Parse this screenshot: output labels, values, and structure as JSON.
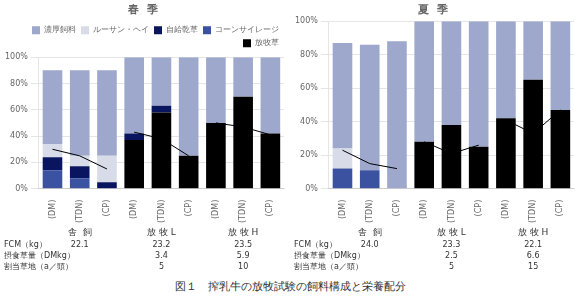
{
  "title": "図１　搾乳牛の放牧試験の飼料構成と栄養配分",
  "chart_data": [
    {
      "type": "bar",
      "title": "春  季",
      "stacked": true,
      "categories": [
        "(DM)",
        "(TDN)",
        "(CP)",
        "(DM)",
        "(TDN)",
        "(CP)",
        "(DM)",
        "(TDN)",
        "(CP)"
      ],
      "groups": [
        "舎  飼",
        "放 牧 L",
        "放 牧 H"
      ],
      "series": [
        {
          "name": "濃厚飼料",
          "color": "#9da8cc",
          "values": [
            56,
            65,
            65,
            58,
            37,
            75,
            50,
            30,
            58
          ]
        },
        {
          "name": "ルーサン・ヘイ",
          "color": "#d8dce8",
          "values": [
            10,
            8,
            20,
            0,
            0,
            0,
            0,
            0,
            0
          ]
        },
        {
          "name": "自給乾草",
          "color": "#0a1560",
          "values": [
            10,
            9,
            5,
            5,
            5,
            0,
            0,
            0,
            0
          ]
        },
        {
          "name": "コーンサイレージ",
          "color": "#3a52a0",
          "values": [
            14,
            8,
            0,
            0,
            0,
            0,
            0,
            0,
            0
          ]
        },
        {
          "name": "放牧草",
          "color": "#000000",
          "values": [
            0,
            0,
            0,
            37,
            58,
            25,
            50,
            70,
            42
          ]
        },
        {
          "type": "line",
          "color": "#000000",
          "values": [
            30,
            25,
            15,
            null,
            null,
            null,
            null,
            null,
            null
          ]
        },
        {
          "type": "line",
          "color": "#000000",
          "values": [
            null,
            null,
            null,
            43,
            38,
            25,
            null,
            null,
            null
          ]
        },
        {
          "type": "line",
          "color": "#000000",
          "values": [
            null,
            null,
            null,
            null,
            null,
            null,
            50,
            47,
            41
          ]
        }
      ],
      "ylim": [
        0,
        100
      ],
      "yticks": [
        {
          "value": 0,
          "label": "0%"
        },
        {
          "value": 20,
          "label": "20%"
        },
        {
          "value": 40,
          "label": "40%"
        },
        {
          "value": 60,
          "label": "60%"
        },
        {
          "value": 80,
          "label": "80%"
        },
        {
          "value": 100,
          "label": "100%"
        }
      ],
      "grid": true,
      "legend": "upper right",
      "stats": [
        {
          "label": "FCM（kg）",
          "cells": [
            "22.1",
            "23.2",
            "23.5"
          ]
        },
        {
          "label": "摂食草量（DMkg）",
          "cells": [
            null,
            "3.4",
            "5.9"
          ]
        },
        {
          "label": "割当草地（a／頭）",
          "cells": [
            null,
            "5",
            "10"
          ]
        }
      ]
    },
    {
      "type": "bar",
      "title": "夏  季",
      "stacked": true,
      "categories": [
        "(DM)",
        "(TDN)",
        "(CP)",
        "(DM)",
        "(TDN)",
        "(CP)",
        "(DM)",
        "(TDN)",
        "(CP)"
      ],
      "groups": [
        "舎  飼",
        "放 牧 L",
        "放 牧 H"
      ],
      "series": [
        {
          "name": "濃厚飼料",
          "color": "#9da8cc",
          "values": [
            63,
            75,
            88,
            72,
            62,
            75,
            58,
            35,
            53
          ]
        },
        {
          "name": "ルーサン・ヘイ",
          "color": "#d8dce8",
          "values": [
            12,
            0,
            0,
            0,
            0,
            0,
            0,
            0,
            0
          ]
        },
        {
          "name": "自給乾草",
          "color": "#0a1560",
          "values": [
            0,
            0,
            0,
            0,
            0,
            0,
            0,
            0,
            0
          ]
        },
        {
          "name": "コーンサイレージ",
          "color": "#3a52a0",
          "values": [
            12,
            11,
            0,
            0,
            0,
            0,
            0,
            0,
            0
          ]
        },
        {
          "name": "放牧草",
          "color": "#000000",
          "values": [
            0,
            0,
            0,
            28,
            38,
            25,
            42,
            65,
            47
          ]
        },
        {
          "type": "line",
          "color": "#000000",
          "values": [
            23,
            15,
            12,
            null,
            null,
            null,
            null,
            null,
            null
          ]
        },
        {
          "type": "line",
          "color": "#000000",
          "values": [
            null,
            null,
            null,
            28,
            21,
            26,
            null,
            null,
            null
          ]
        },
        {
          "type": "line",
          "color": "#000000",
          "values": [
            null,
            null,
            null,
            null,
            null,
            null,
            41,
            33,
            47
          ]
        }
      ],
      "ylim": [
        0,
        100
      ],
      "yticks": [
        {
          "value": 0,
          "label": "0%"
        },
        {
          "value": 20,
          "label": "20%"
        },
        {
          "value": 40,
          "label": "40%"
        },
        {
          "value": 60,
          "label": "60%"
        },
        {
          "value": 80,
          "label": "80%"
        },
        {
          "value": 100,
          "label": "100%"
        }
      ],
      "grid": true,
      "stats": [
        {
          "label": "FCM（kg）",
          "cells": [
            "24.0",
            "23.3",
            "22.1"
          ]
        },
        {
          "label": "摂食草量（DMkg）",
          "cells": [
            null,
            "2.5",
            "6.6"
          ]
        },
        {
          "label": "割当草地（a／頭）",
          "cells": [
            null,
            "5",
            "15"
          ]
        }
      ]
    }
  ]
}
